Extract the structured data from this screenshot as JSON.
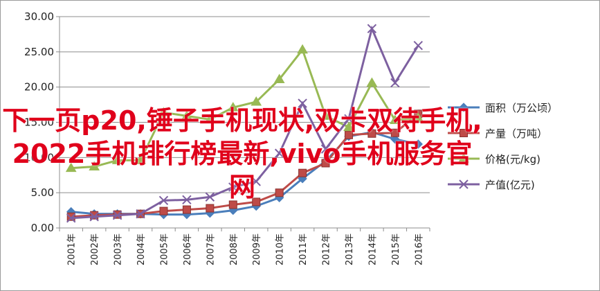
{
  "colors": {
    "area": "#4a7ebb",
    "output": "#be4b48",
    "price": "#98b954",
    "value": "#7d60a0",
    "grid": "#8c8c8c",
    "overlay_text": "#e0001b"
  },
  "chart_data": {
    "type": "line",
    "categories": [
      "2001年",
      "2002年",
      "2003年",
      "2004年",
      "2005年",
      "2006年",
      "2007年",
      "2008年",
      "2009年",
      "2010年",
      "2011年",
      "2012年",
      "2013年",
      "2014年",
      "2015年",
      "2016年"
    ],
    "ylim": [
      0,
      30
    ],
    "yticks": [
      "0.00",
      "5.00",
      "10.00",
      "15.00",
      "20.00",
      "25.00",
      "30.00"
    ],
    "grid": true,
    "legend_position": "right",
    "series": [
      {
        "name": "面积（万公顷）",
        "marker": "diamond",
        "color_key": "area",
        "values": [
          2.3,
          2.0,
          2.0,
          2.0,
          1.9,
          1.9,
          2.1,
          2.5,
          3.1,
          4.3,
          7.0,
          9.5,
          13.0,
          13.6,
          12.6,
          11.9
        ]
      },
      {
        "name": "产量（万吨）",
        "marker": "square",
        "color_key": "output",
        "values": [
          1.6,
          1.8,
          1.9,
          2.0,
          2.4,
          2.6,
          2.8,
          3.3,
          3.7,
          5.0,
          7.8,
          9.2,
          13.2,
          13.4,
          13.5,
          16.2
        ]
      },
      {
        "name": "价格(元/kg)",
        "marker": "triangle",
        "color_key": "price",
        "values": [
          8.5,
          8.7,
          9.6,
          9.6,
          16.4,
          15.9,
          15.4,
          17.1,
          17.9,
          21.1,
          25.3,
          15.9,
          14.3,
          20.6,
          15.3,
          15.6
        ]
      },
      {
        "name": "产值(亿元)",
        "marker": "x",
        "color_key": "value",
        "values": [
          1.4,
          1.6,
          1.8,
          2.0,
          3.9,
          4.0,
          4.4,
          5.8,
          6.6,
          10.6,
          17.7,
          11.2,
          15.5,
          28.3,
          20.6,
          25.9
        ]
      }
    ]
  },
  "overlay": {
    "line1": "下一页p20,锤子手机现状,双卡双待手机,",
    "line2": "2022手机排行榜最新,vivo手机服务官",
    "line3": "网"
  }
}
